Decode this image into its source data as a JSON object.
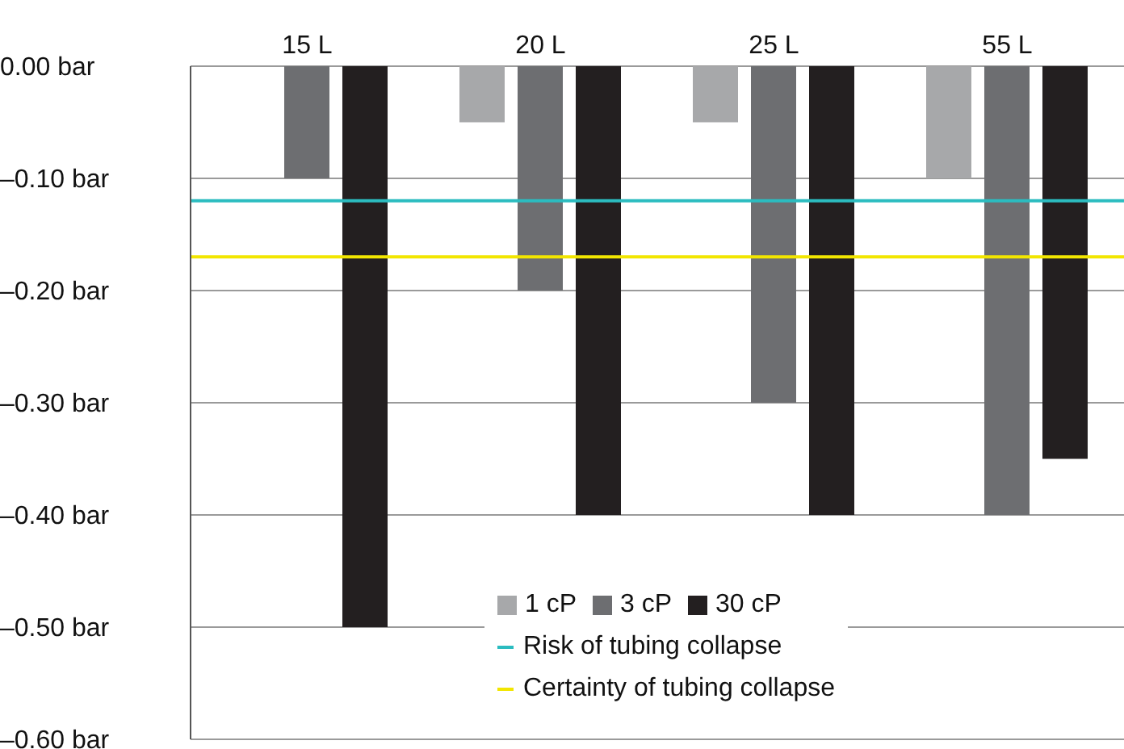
{
  "chart_data": {
    "type": "bar",
    "categories": [
      "15 L",
      "20 L",
      "25 L",
      "55 L"
    ],
    "series": [
      {
        "name": "1 cP",
        "color": "#a7a8aa",
        "values": [
          null,
          -0.05,
          -0.05,
          -0.1
        ]
      },
      {
        "name": "3 cP",
        "color": "#6d6e71",
        "values": [
          -0.1,
          -0.2,
          -0.3,
          -0.4
        ]
      },
      {
        "name": "30 cP",
        "color": "#231f20",
        "values": [
          -0.5,
          -0.4,
          -0.4,
          -0.35
        ]
      }
    ],
    "ylim": [
      -0.6,
      0
    ],
    "yticks": [
      {
        "value": 0,
        "label": "0.00 bar"
      },
      {
        "value": -0.1,
        "label": "–0.10 bar"
      },
      {
        "value": -0.2,
        "label": "–0.20 bar"
      },
      {
        "value": -0.3,
        "label": "–0.30 bar"
      },
      {
        "value": -0.4,
        "label": "–0.40 bar"
      },
      {
        "value": -0.5,
        "label": "–0.50 bar"
      },
      {
        "value": -0.6,
        "label": "–0.60 bar"
      }
    ],
    "ref_lines": [
      {
        "axis": "y",
        "value": -0.12,
        "label": "Risk of tubing collapse",
        "color": "#2bbcc0"
      },
      {
        "axis": "y",
        "value": -0.17,
        "label": "Certainty of tubing collapse",
        "color": "#f2e600"
      }
    ],
    "grid": "y",
    "legend": "bottom"
  }
}
